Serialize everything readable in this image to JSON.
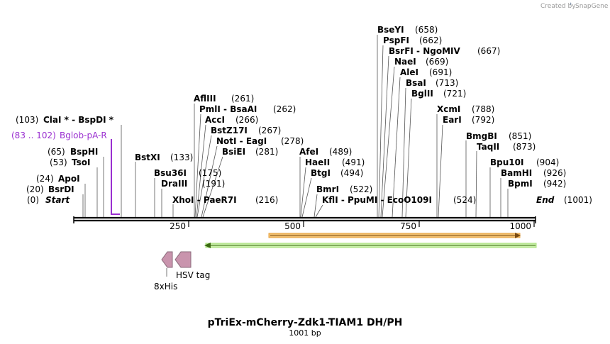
{
  "credit": {
    "text": "Created by",
    "brand": "SnapGene"
  },
  "title": "pTriEx-mCherry-Zdk1-TIAM1 DH/PH",
  "length_label": "1001 bp",
  "colors": {
    "primer": "#9a2fd0",
    "feature_tag": "#c994ad",
    "orange_arrow": "#e8a23c",
    "green_arrow": "#a7e07a",
    "backbone": "#000000"
  },
  "sites": [
    {
      "name": "Start",
      "pos": "(0)"
    },
    {
      "name": "BsrDI",
      "pos": "(20)"
    },
    {
      "name": "ApoI",
      "pos": "(24)"
    },
    {
      "name": "TsoI",
      "pos": "(53)"
    },
    {
      "name": "BspHI",
      "pos": "(65)"
    },
    {
      "name": "ClaI * - BspDI *",
      "pos": "(103)"
    },
    {
      "name": "BstXI",
      "pos": "(133)"
    },
    {
      "name": "Bsu36I",
      "pos": "(175)"
    },
    {
      "name": "DraIII",
      "pos": "(191)"
    },
    {
      "name": "XhoI - PaeR7I",
      "pos": "(216)"
    },
    {
      "name": "AflIII",
      "pos": "(261)"
    },
    {
      "name": "PmlI - BsaAI",
      "pos": "(262)"
    },
    {
      "name": "AccI",
      "pos": "(266)"
    },
    {
      "name": "BstZ17I",
      "pos": "(267)"
    },
    {
      "name": "NotI - EagI",
      "pos": "(278)"
    },
    {
      "name": "BsiEI",
      "pos": "(281)"
    },
    {
      "name": "AfeI",
      "pos": "(489)"
    },
    {
      "name": "HaeII",
      "pos": "(491)"
    },
    {
      "name": "BtgI",
      "pos": "(494)"
    },
    {
      "name": "BmrI",
      "pos": "(522)"
    },
    {
      "name": "KflI - PpuMI - EcoO109I",
      "pos": "(524)"
    },
    {
      "name": "BseYI",
      "pos": "(658)"
    },
    {
      "name": "PspFI",
      "pos": "(662)"
    },
    {
      "name": "BsrFI - NgoMIV",
      "pos": "(667)"
    },
    {
      "name": "NaeI",
      "pos": "(669)"
    },
    {
      "name": "AleI",
      "pos": "(691)"
    },
    {
      "name": "BsaI",
      "pos": "(713)"
    },
    {
      "name": "BglII",
      "pos": "(721)"
    },
    {
      "name": "XcmI",
      "pos": "(788)"
    },
    {
      "name": "EarI",
      "pos": "(792)"
    },
    {
      "name": "BmgBI",
      "pos": "(851)"
    },
    {
      "name": "TaqII",
      "pos": "(873)"
    },
    {
      "name": "Bpu10I",
      "pos": "(904)"
    },
    {
      "name": "BamHI",
      "pos": "(926)"
    },
    {
      "name": "BpmI",
      "pos": "(942)"
    },
    {
      "name": "End",
      "pos": "(1001)"
    }
  ],
  "primer": {
    "range": "(83 .. 102)",
    "name": "Bglob-pA-R"
  },
  "ticks": [
    "250",
    "500",
    "750",
    "1000"
  ],
  "features": {
    "hsv_tag": "HSV tag",
    "his_tag": "8xHis"
  }
}
